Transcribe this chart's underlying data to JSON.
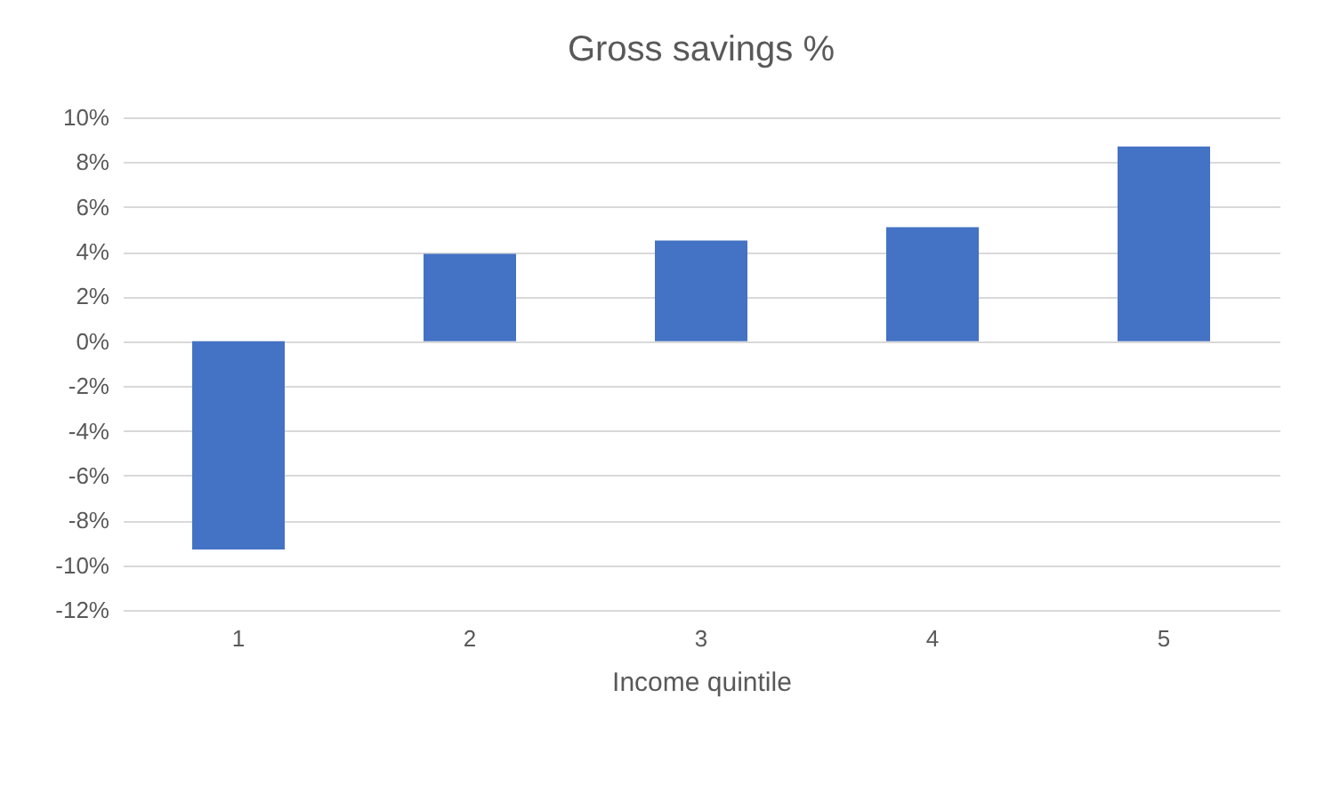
{
  "chart_data": {
    "type": "bar",
    "title": "Gross savings %",
    "xlabel": "Income quintile",
    "categories": [
      "1",
      "2",
      "3",
      "4",
      "5"
    ],
    "values": [
      -9.3,
      3.9,
      4.5,
      5.1,
      8.7
    ],
    "color": "#4472c4",
    "ylim": [
      -12,
      10
    ],
    "yticks": [
      {
        "value": -12,
        "label": "-12%"
      },
      {
        "value": -10,
        "label": "-10%"
      },
      {
        "value": -8,
        "label": "-8%"
      },
      {
        "value": -6,
        "label": "-6%"
      },
      {
        "value": -4,
        "label": "-4%"
      },
      {
        "value": -2,
        "label": "-2%"
      },
      {
        "value": 0,
        "label": "0%"
      },
      {
        "value": 2,
        "label": "2%"
      },
      {
        "value": 4,
        "label": "4%"
      },
      {
        "value": 6,
        "label": "6%"
      },
      {
        "value": 8,
        "label": "8%"
      },
      {
        "value": 10,
        "label": "10%"
      }
    ],
    "grid": "y"
  }
}
